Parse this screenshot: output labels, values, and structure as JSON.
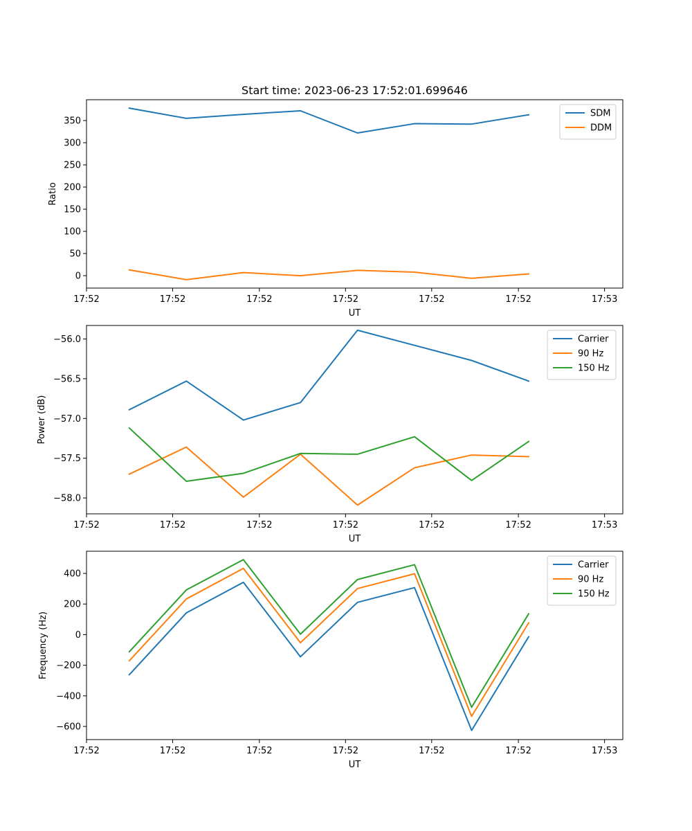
{
  "chart_data": [
    {
      "type": "line",
      "title": "Start time: 2023-06-23 17:52:01.699646",
      "xlabel": "UT",
      "ylabel": "Ratio",
      "legend_position": "top-right",
      "grid": false,
      "x_index": [
        0,
        1,
        2,
        3,
        4,
        5,
        6,
        7
      ],
      "xlim": [
        -0.75,
        8.65
      ],
      "ylim": [
        -28,
        397
      ],
      "x_ticks": [
        -0.75,
        0.76,
        2.28,
        3.79,
        5.3,
        6.82,
        8.33
      ],
      "x_tick_labels": [
        "17:52",
        "17:52",
        "17:52",
        "17:52",
        "17:52",
        "17:52",
        "17:53"
      ],
      "y_ticks": [
        0,
        50,
        100,
        150,
        200,
        250,
        300,
        350
      ],
      "y_tick_labels": [
        "0",
        "50",
        "100",
        "150",
        "200",
        "250",
        "300",
        "350"
      ],
      "series": [
        {
          "name": "SDM",
          "color": "#1f77b4",
          "values": [
            378,
            355,
            364,
            372,
            322,
            343,
            342,
            363
          ]
        },
        {
          "name": "DDM",
          "color": "#ff7f0e",
          "values": [
            13,
            -9,
            7,
            0,
            12,
            8,
            -6,
            4
          ]
        }
      ]
    },
    {
      "type": "line",
      "title": "",
      "xlabel": "UT",
      "ylabel": "Power (dB)",
      "legend_position": "top-right",
      "grid": false,
      "x_index": [
        0,
        1,
        2,
        3,
        4,
        5,
        6,
        7
      ],
      "xlim": [
        -0.75,
        8.65
      ],
      "ylim": [
        -58.2,
        -55.83
      ],
      "x_ticks": [
        -0.75,
        0.76,
        2.28,
        3.79,
        5.3,
        6.82,
        8.33
      ],
      "x_tick_labels": [
        "17:52",
        "17:52",
        "17:52",
        "17:52",
        "17:52",
        "17:52",
        "17:53"
      ],
      "y_ticks": [
        -58.0,
        -57.5,
        -57.0,
        -56.5,
        -56.0
      ],
      "y_tick_labels": [
        "−58.0",
        "−57.5",
        "−57.0",
        "−56.5",
        "−56.0"
      ],
      "series": [
        {
          "name": "Carrier",
          "color": "#1f77b4",
          "values": [
            -56.89,
            -56.53,
            -57.02,
            -56.8,
            -55.89,
            -56.08,
            -56.27,
            -56.53
          ]
        },
        {
          "name": "90 Hz",
          "color": "#ff7f0e",
          "values": [
            -57.7,
            -57.36,
            -57.99,
            -57.45,
            -58.09,
            -57.62,
            -57.46,
            -57.48
          ]
        },
        {
          "name": "150 Hz",
          "color": "#2ca02c",
          "values": [
            -57.12,
            -57.79,
            -57.69,
            -57.44,
            -57.45,
            -57.23,
            -57.78,
            -57.29
          ]
        }
      ]
    },
    {
      "type": "line",
      "title": "",
      "xlabel": "UT",
      "ylabel": "Frequency (Hz)",
      "legend_position": "top-right",
      "grid": false,
      "x_index": [
        0,
        1,
        2,
        3,
        4,
        5,
        6,
        7
      ],
      "xlim": [
        -0.75,
        8.65
      ],
      "ylim": [
        -686,
        545
      ],
      "x_ticks": [
        -0.75,
        0.76,
        2.28,
        3.79,
        5.3,
        6.82,
        8.33
      ],
      "x_tick_labels": [
        "17:52",
        "17:52",
        "17:52",
        "17:52",
        "17:52",
        "17:52",
        "17:53"
      ],
      "y_ticks": [
        -600,
        -400,
        -200,
        0,
        200,
        400
      ],
      "y_tick_labels": [
        "−600",
        "−400",
        "−200",
        "0",
        "200",
        "400"
      ],
      "series": [
        {
          "name": "Carrier",
          "color": "#1f77b4",
          "values": [
            -262,
            142,
            342,
            -145,
            211,
            307,
            -626,
            -14
          ]
        },
        {
          "name": "90 Hz",
          "color": "#ff7f0e",
          "values": [
            -171,
            233,
            433,
            -53,
            301,
            398,
            -534,
            77
          ]
        },
        {
          "name": "150 Hz",
          "color": "#2ca02c",
          "values": [
            -112,
            292,
            490,
            3,
            360,
            457,
            -475,
            136
          ]
        }
      ]
    }
  ]
}
